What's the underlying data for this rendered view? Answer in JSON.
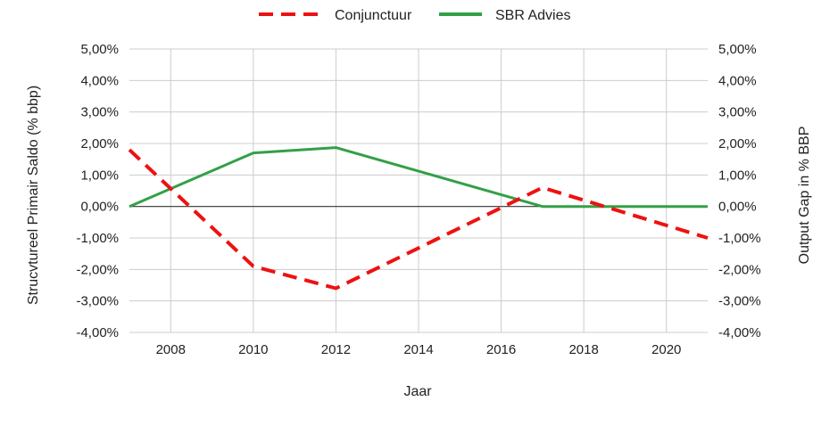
{
  "chart_data": {
    "type": "line",
    "xlabel": "Jaar",
    "ylabel_left": "Strucvtureel Primair Saldo (% bbp)",
    "ylabel_right": "Output Gap in % BBP",
    "xlim": [
      2007,
      2021
    ],
    "ylim": [
      -0.04,
      0.05
    ],
    "x_ticks": [
      2008,
      2010,
      2012,
      2014,
      2016,
      2018,
      2020
    ],
    "x_tick_labels": [
      "2008",
      "2010",
      "2012",
      "2014",
      "2016",
      "2018",
      "2020"
    ],
    "y_ticks": [
      0.05,
      0.04,
      0.03,
      0.02,
      0.01,
      0.0,
      -0.01,
      -0.02,
      -0.03,
      -0.04
    ],
    "y_tick_labels": [
      "5,00%",
      "4,00%",
      "3,00%",
      "2,00%",
      "1,00%",
      "0,00%",
      "-1,00%",
      "-2,00%",
      "-3,00%",
      "-4,00%"
    ],
    "grid": true,
    "legend_position": "top-center",
    "series": [
      {
        "name": "Conjunctuur",
        "color": "#ee1111",
        "style": "dashed",
        "axis": "right",
        "x": [
          2007,
          2010,
          2012,
          2017,
          2021
        ],
        "y": [
          0.018,
          -0.019,
          -0.026,
          0.006,
          -0.01
        ]
      },
      {
        "name": "SBR Advies",
        "color": "#33a047",
        "style": "solid",
        "axis": "left",
        "x": [
          2007,
          2010,
          2012,
          2017,
          2021
        ],
        "y": [
          0.0,
          0.017,
          0.0187,
          0.0,
          0.0
        ]
      }
    ]
  }
}
